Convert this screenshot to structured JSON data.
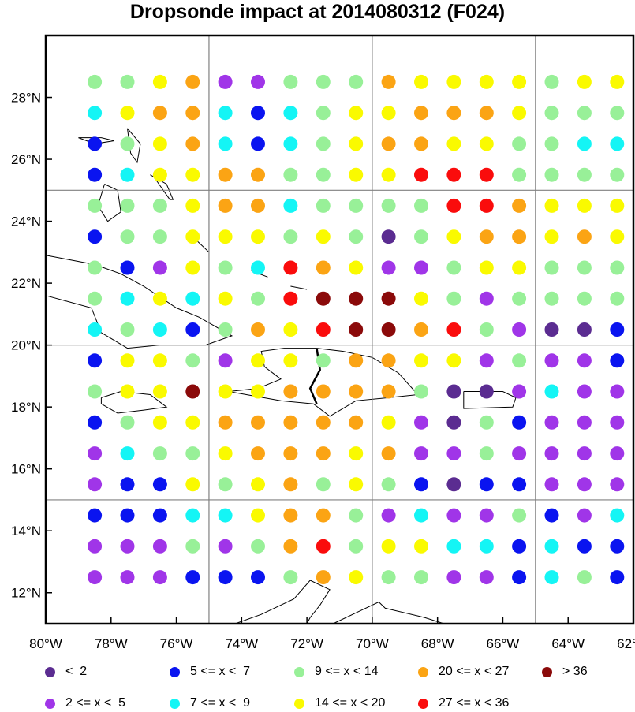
{
  "title": "Dropsonde impact at 2014080312 (F024)",
  "map": {
    "lon_range": [
      -80,
      -62
    ],
    "lat_range": [
      11,
      30
    ],
    "x_ticks": [
      "80°W",
      "78°W",
      "76°W",
      "74°W",
      "72°W",
      "70°W",
      "68°W",
      "66°W",
      "64°W",
      "62°W"
    ],
    "y_ticks": [
      "12°N",
      "14°N",
      "16°N",
      "18°N",
      "20°N",
      "22°N",
      "24°N",
      "26°N",
      "28°N"
    ],
    "grid_lons": [
      -75,
      -70,
      -65
    ],
    "grid_lats": [
      15,
      20,
      25
    ],
    "grid": true
  },
  "legend": [
    {
      "key": "a",
      "label": "<  2",
      "color": "#5b2c91"
    },
    {
      "key": "b",
      "label": "2 <= x <  5",
      "color": "#a035e8"
    },
    {
      "key": "c",
      "label": "5 <= x <  7",
      "color": "#0a14f0"
    },
    {
      "key": "d",
      "label": "7 <= x <  9",
      "color": "#14f5f5"
    },
    {
      "key": "e",
      "label": "9 <= x < 14",
      "color": "#98f098"
    },
    {
      "key": "f",
      "label": "14 <= x < 20",
      "color": "#fafa00"
    },
    {
      "key": "g",
      "label": "20 <= x < 27",
      "color": "#fba414"
    },
    {
      "key": "h",
      "label": "27 <= x < 36",
      "color": "#fa0c0c"
    },
    {
      "key": "i",
      "label": "> 36",
      "color": "#8b0a0a"
    }
  ],
  "grid_points": {
    "lons": [
      -78.5,
      -77.5,
      -76.5,
      -75.5,
      -74.5,
      -73.5,
      -72.5,
      -71.5,
      -70.5,
      -69.5,
      -68.5,
      -67.5,
      -66.5,
      -65.5,
      -64.5,
      -63.5,
      -62.5
    ],
    "lats": [
      28.5,
      27.5,
      26.5,
      25.5,
      24.5,
      23.5,
      22.5,
      21.5,
      20.5,
      19.5,
      18.5,
      17.5,
      16.5,
      15.5,
      14.5,
      13.5,
      12.5
    ],
    "rows": [
      "eefgbbeeegffffeff",
      "dfggdcdeffgggfeee",
      "cefgdcdefggffeedd",
      "cdffggeeffhhheeee",
      "eeefggdeeeehhgfff",
      "ceefffefeaefggfgf",
      "ecbfedhgfbbeffeee",
      "edfdfehiiifebeeee",
      "dedcegfhiighebaac",
      "cffebffeggffbebbc",
      "effiffggggeaabdbb",
      "ceffgggggfbaecbbb",
      "bdeefgggfgbbebbbb",
      "bccfefgefecaccbbb",
      "cccddfggebdbbecbd",
      "bbbebegheffddcdcc",
      "bbbcccegfeebbcdec"
    ]
  },
  "chart_data": {
    "type": "scatter",
    "title": "Dropsonde impact at 2014080312 (F024)",
    "x_axis": "longitude",
    "y_axis": "latitude",
    "xlim": [
      -80,
      -62
    ],
    "ylim": [
      11,
      30
    ],
    "note_encoding": "grid_points.rows[i][j] gives the legend key of the dot at lats[i], lons[j]"
  }
}
